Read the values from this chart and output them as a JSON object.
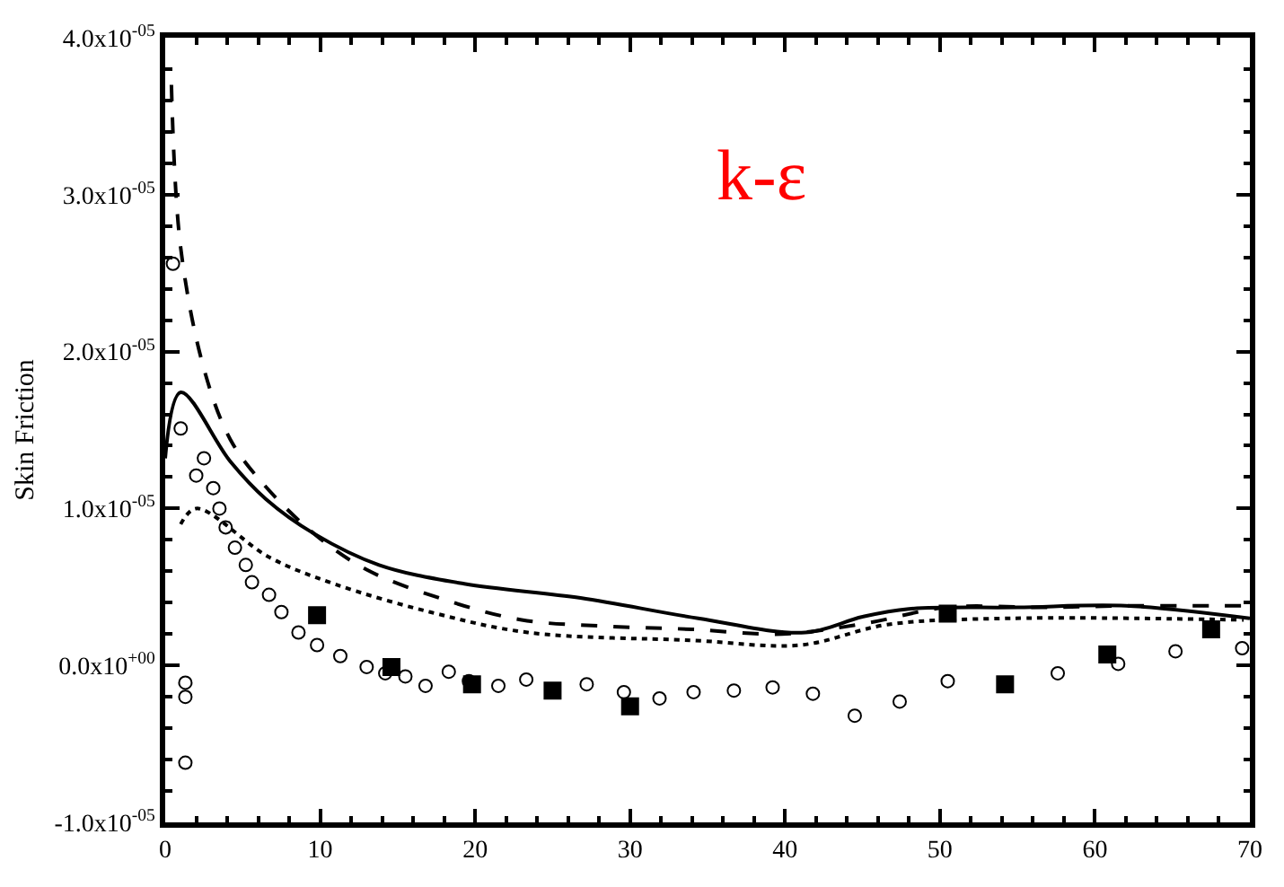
{
  "chart_data": {
    "type": "line",
    "ylabel": "Skin Friction",
    "annotations": [
      "k-ε"
    ],
    "xlim": [
      0,
      70
    ],
    "xticks": [
      0,
      10,
      20,
      30,
      40,
      50,
      60,
      70
    ],
    "ylim": [
      -1e-05,
      4e-05
    ],
    "yticks": [
      {
        "value": -1e-05,
        "label": "-1.0x10$^{-05}$"
      },
      {
        "value": 0,
        "label": "0.0x10$^{+00}$"
      },
      {
        "value": 1e-05,
        "label": "1.0x10$^{-05}$"
      },
      {
        "value": 2e-05,
        "label": "2.0x10$^{-05}$"
      },
      {
        "value": 3e-05,
        "label": "3.0x10$^{-05}$"
      },
      {
        "value": 4e-05,
        "label": "4.0x10$^{-05}$"
      }
    ],
    "series": [
      {
        "line_style": "solid",
        "marker": "none",
        "color": "#000000",
        "x": [
          0,
          1,
          4.2,
          6.5,
          9.6,
          13.8,
          19.3,
          26.8,
          34.4,
          41.3,
          45,
          48,
          55,
          62,
          70
        ],
        "values": [
          1.32e-05,
          1.74e-05,
          1.3e-05,
          1.06e-05,
          8.4e-06,
          6.4e-06,
          5.2e-06,
          4.3e-06,
          3e-06,
          2.1e-06,
          3.1e-06,
          3.6e-06,
          3.7e-06,
          3.8e-06,
          3e-06
        ]
      },
      {
        "line_style": "dashed",
        "marker": "none",
        "color": "#000000",
        "x": [
          0.4,
          1,
          2.5,
          4.2,
          6.3,
          9.6,
          13,
          18,
          23,
          28.5,
          34,
          39.8,
          45.3,
          50.4,
          56.7,
          62,
          67.5,
          70
        ],
        "values": [
          3.7e-05,
          2.66e-05,
          1.89e-05,
          1.44e-05,
          1.16e-05,
          8.4e-06,
          6.1e-06,
          4.2e-06,
          2.9e-06,
          2.5e-06,
          2.3e-06,
          2e-06,
          2.7e-06,
          3.7e-06,
          3.7e-06,
          3.8e-06,
          3.8e-06,
          3.8e-06
        ]
      },
      {
        "line_style": "dotted",
        "marker": "none",
        "color": "#000000",
        "x": [
          1,
          2,
          6.7,
          10.9,
          17.1,
          23.4,
          34,
          41,
          46.6,
          54.5,
          69.6
        ],
        "values": [
          9e-06,
          1e-05,
          6.9e-06,
          5.2e-06,
          3.4e-06,
          2.1e-06,
          1.6e-06,
          1.3e-06,
          2.6e-06,
          3e-06,
          2.9e-06
        ]
      },
      {
        "type": "scatter",
        "marker": "circle",
        "color": "#000000",
        "x": [
          0.5,
          1,
          1.3,
          1.3,
          1.3,
          2.0,
          2.5,
          3.1,
          3.5,
          3.9,
          4.5,
          5.2,
          5.6,
          6.7,
          7.5,
          8.6,
          9.8,
          11.3,
          13,
          14.2,
          15.5,
          16.8,
          18.3,
          19.6,
          21.5,
          23.3,
          27.2,
          29.6,
          31.9,
          34.1,
          36.7,
          39.2,
          41.8,
          44.5,
          47.4,
          50.5,
          57.6,
          61.5,
          65.2,
          69.5
        ],
        "values": [
          2.56e-05,
          1.51e-05,
          -1.1e-06,
          -2e-06,
          -6.2e-06,
          1.21e-05,
          1.32e-05,
          1.13e-05,
          1e-05,
          8.8e-06,
          7.5e-06,
          6.4e-06,
          5.3e-06,
          4.5e-06,
          3.4e-06,
          2.1e-06,
          1.3e-06,
          6e-07,
          -1e-07,
          -5e-07,
          -7e-07,
          -1.3e-06,
          -4e-07,
          -1e-06,
          -1.3e-06,
          -9e-07,
          -1.2e-06,
          -1.7e-06,
          -2.1e-06,
          -1.7e-06,
          -1.6e-06,
          -1.4e-06,
          -1.8e-06,
          -3.2e-06,
          -2.3e-06,
          -1e-06,
          -5e-07,
          1e-07,
          9e-07,
          1.1e-06
        ]
      },
      {
        "type": "scatter",
        "marker": "square",
        "color": "#000000",
        "x": [
          9.8,
          14.6,
          19.8,
          25,
          30,
          50.5,
          54.2,
          60.8,
          67.5
        ],
        "values": [
          3.2e-06,
          -1e-07,
          -1.2e-06,
          -1.6e-06,
          -2.6e-06,
          3.3e-06,
          -1.2e-06,
          7e-07,
          2.3e-06
        ]
      }
    ]
  }
}
